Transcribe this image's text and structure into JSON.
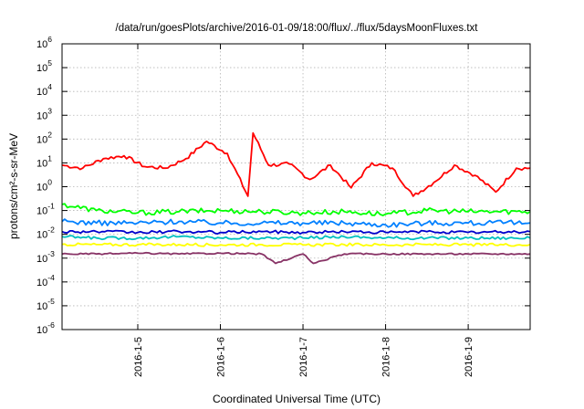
{
  "chart_data": {
    "type": "line",
    "title": "/data/run/goesPlots/archive/2016-01-09/18:00/flux/../flux/5daysMoonFluxes.txt",
    "xlabel": "Coordinated Universal Time (UTC)",
    "ylabel": "protons/cm²-s-sr-MeV",
    "yscale": "log",
    "ylim": [
      1e-06,
      1000000.0
    ],
    "xlim": [
      "2016-01-04T02:00",
      "2016-01-09T18:00"
    ],
    "x_ticks": [
      "2016-1-5",
      "2016-1-6",
      "2016-1-7",
      "2016-1-8",
      "2016-1-9"
    ],
    "y_ticks": [
      {
        "base": "10",
        "exp": "-6"
      },
      {
        "base": "10",
        "exp": "-5"
      },
      {
        "base": "10",
        "exp": "-4"
      },
      {
        "base": "10",
        "exp": "-3"
      },
      {
        "base": "10",
        "exp": "-2"
      },
      {
        "base": "10",
        "exp": "-1"
      },
      {
        "base": "10",
        "exp": "0"
      },
      {
        "base": "10",
        "exp": "1"
      },
      {
        "base": "10",
        "exp": "2"
      },
      {
        "base": "10",
        "exp": "3"
      },
      {
        "base": "10",
        "exp": "4"
      },
      {
        "base": "10",
        "exp": "5"
      },
      {
        "base": "10",
        "exp": "6"
      }
    ],
    "grid": true,
    "series": [
      {
        "color": "#ff0000",
        "x": [
          "2016-01-04T02:00",
          "2016-01-04T08:00",
          "2016-01-04T14:00",
          "2016-01-04T20:00",
          "2016-01-05T02:00",
          "2016-01-05T08:00",
          "2016-01-05T14:00",
          "2016-01-05T20:00",
          "2016-01-06T02:00",
          "2016-01-06T08:00",
          "2016-01-06T09:30",
          "2016-01-06T14:00",
          "2016-01-06T20:00",
          "2016-01-07T02:00",
          "2016-01-07T08:00",
          "2016-01-07T14:00",
          "2016-01-07T20:00",
          "2016-01-08T02:00",
          "2016-01-08T08:00",
          "2016-01-08T14:00",
          "2016-01-08T20:00",
          "2016-01-09T02:00",
          "2016-01-09T08:00",
          "2016-01-09T14:00",
          "2016-01-09T18:00"
        ],
        "y": [
          8,
          6,
          15,
          20,
          7,
          6,
          15,
          80,
          25,
          0.4,
          180,
          8,
          9,
          2,
          8,
          0.9,
          10,
          6,
          0.4,
          1.5,
          8,
          3,
          0.6,
          6,
          6
        ]
      },
      {
        "color": "#00ff00",
        "x": [
          "2016-01-04T02:00",
          "2016-01-04T12:00",
          "2016-01-05T00:00",
          "2016-01-05T12:00",
          "2016-01-06T00:00",
          "2016-01-06T12:00",
          "2016-01-07T00:00",
          "2016-01-07T12:00",
          "2016-01-08T00:00",
          "2016-01-08T12:00",
          "2016-01-09T00:00",
          "2016-01-09T18:00"
        ],
        "y": [
          0.18,
          0.1,
          0.08,
          0.09,
          0.1,
          0.09,
          0.08,
          0.09,
          0.07,
          0.1,
          0.09,
          0.09
        ]
      },
      {
        "color": "#0080ff",
        "x": [
          "2016-01-04T02:00",
          "2016-01-04T12:00",
          "2016-01-05T00:00",
          "2016-01-05T12:00",
          "2016-01-06T00:00",
          "2016-01-06T12:00",
          "2016-01-07T00:00",
          "2016-01-07T12:00",
          "2016-01-08T00:00",
          "2016-01-08T12:00",
          "2016-01-09T00:00",
          "2016-01-09T18:00"
        ],
        "y": [
          0.035,
          0.03,
          0.03,
          0.035,
          0.03,
          0.03,
          0.03,
          0.03,
          0.025,
          0.03,
          0.03,
          0.03
        ]
      },
      {
        "color": "#0000cc",
        "x": [
          "2016-01-04T02:00",
          "2016-01-04T12:00",
          "2016-01-05T00:00",
          "2016-01-05T12:00",
          "2016-01-06T00:00",
          "2016-01-06T12:00",
          "2016-01-07T00:00",
          "2016-01-07T12:00",
          "2016-01-08T00:00",
          "2016-01-08T12:00",
          "2016-01-09T00:00",
          "2016-01-09T18:00"
        ],
        "y": [
          0.013,
          0.013,
          0.012,
          0.013,
          0.012,
          0.013,
          0.012,
          0.013,
          0.012,
          0.013,
          0.012,
          0.013
        ]
      },
      {
        "color": "#00c0c0",
        "x": [
          "2016-01-04T02:00",
          "2016-01-04T12:00",
          "2016-01-05T00:00",
          "2016-01-05T12:00",
          "2016-01-06T00:00",
          "2016-01-06T12:00",
          "2016-01-07T00:00",
          "2016-01-07T12:00",
          "2016-01-08T00:00",
          "2016-01-08T12:00",
          "2016-01-09T00:00",
          "2016-01-09T18:00"
        ],
        "y": [
          0.008,
          0.007,
          0.007,
          0.008,
          0.007,
          0.007,
          0.007,
          0.008,
          0.007,
          0.007,
          0.007,
          0.007
        ]
      },
      {
        "color": "#ffff00",
        "x": [
          "2016-01-04T02:00",
          "2016-01-04T12:00",
          "2016-01-05T00:00",
          "2016-01-05T12:00",
          "2016-01-06T00:00",
          "2016-01-06T12:00",
          "2016-01-07T00:00",
          "2016-01-07T12:00",
          "2016-01-08T00:00",
          "2016-01-08T12:00",
          "2016-01-09T00:00",
          "2016-01-09T18:00"
        ],
        "y": [
          0.0038,
          0.0037,
          0.0037,
          0.0037,
          0.0036,
          0.0037,
          0.0036,
          0.0037,
          0.0036,
          0.0037,
          0.0036,
          0.0037
        ]
      },
      {
        "color": "#883366",
        "x": [
          "2016-01-04T02:00",
          "2016-01-04T12:00",
          "2016-01-05T00:00",
          "2016-01-05T12:00",
          "2016-01-06T00:00",
          "2016-01-06T12:00",
          "2016-01-06T16:00",
          "2016-01-07T00:00",
          "2016-01-07T03:00",
          "2016-01-07T12:00",
          "2016-01-08T00:00",
          "2016-01-08T12:00",
          "2016-01-09T00:00",
          "2016-01-09T18:00"
        ],
        "y": [
          0.0015,
          0.0015,
          0.0016,
          0.0015,
          0.0016,
          0.0015,
          0.0006,
          0.0015,
          0.0006,
          0.0015,
          0.0015,
          0.0015,
          0.0015,
          0.0015
        ]
      }
    ]
  }
}
